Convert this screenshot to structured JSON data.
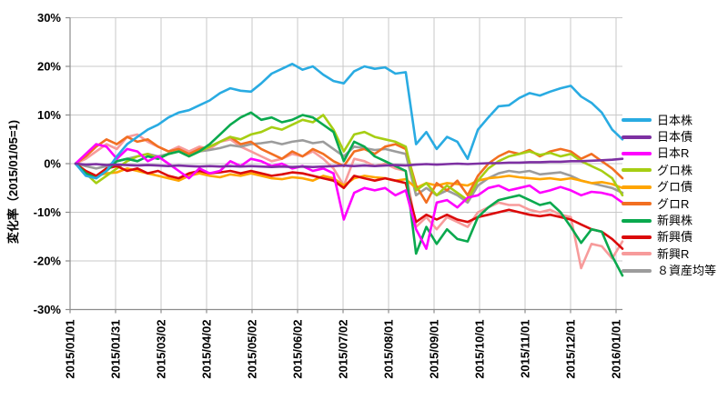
{
  "chart_data": {
    "type": "line",
    "title": "",
    "ylabel": "変化率（2015/01/05=1)",
    "ylim": [
      -30,
      30
    ],
    "y_tick_step": 10,
    "y_tick_labels": [
      "30%",
      "20%",
      "10%",
      "0%",
      "-10%",
      "-20%",
      "-30%"
    ],
    "x_tick_labels": [
      "2015/01/01",
      "2015/01/31",
      "2015/03/02",
      "2015/04/02",
      "2015/05/02",
      "2015/06/02",
      "2015/07/02",
      "2015/08/01",
      "2015/09/01",
      "2015/10/01",
      "2015/11/01",
      "2015/12/01",
      "2016/01/01"
    ],
    "grid": true,
    "legend_position": "right",
    "unit": "percent",
    "x_dates": [
      "2015/01/05",
      "2015/01/12",
      "2015/01/19",
      "2015/01/26",
      "2015/02/02",
      "2015/02/09",
      "2015/02/16",
      "2015/02/23",
      "2015/03/02",
      "2015/03/09",
      "2015/03/16",
      "2015/03/23",
      "2015/03/30",
      "2015/04/06",
      "2015/04/13",
      "2015/04/20",
      "2015/04/27",
      "2015/05/04",
      "2015/05/11",
      "2015/05/18",
      "2015/05/25",
      "2015/06/01",
      "2015/06/08",
      "2015/06/15",
      "2015/06/22",
      "2015/06/29",
      "2015/07/06",
      "2015/07/13",
      "2015/07/20",
      "2015/07/27",
      "2015/08/03",
      "2015/08/10",
      "2015/08/17",
      "2015/08/24",
      "2015/08/31",
      "2015/09/07",
      "2015/09/14",
      "2015/09/21",
      "2015/09/28",
      "2015/10/05",
      "2015/10/12",
      "2015/10/19",
      "2015/10/26",
      "2015/11/02",
      "2015/11/09",
      "2015/11/16",
      "2015/11/23",
      "2015/11/30",
      "2015/12/07",
      "2015/12/14",
      "2015/12/21",
      "2015/12/28",
      "2016/01/04",
      "2016/01/08"
    ],
    "series": [
      {
        "id": "japan-stock",
        "name": "日本株",
        "color": "#29ABE2",
        "values": [
          0,
          -2.5,
          -3,
          -1.5,
          1.5,
          4,
          5.5,
          7,
          8,
          9.5,
          10.5,
          11,
          12,
          13,
          14.5,
          15.5,
          15,
          14.8,
          16.5,
          18.5,
          19.5,
          20.5,
          19.3,
          20,
          18.3,
          17,
          16.5,
          19,
          20,
          19.5,
          19.8,
          18.5,
          18.8,
          4,
          6.5,
          3,
          5.5,
          4.5,
          1,
          7,
          9.5,
          11.8,
          12,
          13.5,
          14.5,
          14,
          14.8,
          15.5,
          16,
          13.8,
          12.5,
          10.5,
          7,
          5
        ]
      },
      {
        "id": "japan-bond",
        "name": "日本債",
        "color": "#7D30A2",
        "values": [
          0,
          -0.2,
          -0.1,
          -0.3,
          -0.2,
          -0.3,
          -0.4,
          -0.3,
          -0.4,
          -0.5,
          -0.4,
          -0.5,
          -0.6,
          -0.5,
          -0.6,
          -0.5,
          -0.6,
          -0.5,
          -0.6,
          -0.7,
          -0.6,
          -0.7,
          -0.6,
          -0.7,
          -0.6,
          -0.5,
          -0.4,
          -0.5,
          -0.4,
          -0.5,
          -0.4,
          -0.3,
          -0.4,
          -0.2,
          -0.1,
          -0.2,
          -0.1,
          0,
          -0.1,
          0,
          0.1,
          0.1,
          0.2,
          0.2,
          0.3,
          0.3,
          0.4,
          0.4,
          0.5,
          0.5,
          0.6,
          0.7,
          0.8,
          1
        ]
      },
      {
        "id": "japan-reit",
        "name": "日本R",
        "color": "#FF00FF",
        "values": [
          0,
          2,
          4,
          3.5,
          1,
          3,
          2.5,
          0.5,
          1.5,
          0,
          -1.5,
          -3,
          -1,
          -2,
          -1.5,
          0.5,
          -0.5,
          1,
          0.5,
          -0.5,
          0,
          -1,
          -0.5,
          -1.5,
          -1,
          -2,
          -11.5,
          -6,
          -5,
          -5.5,
          -5,
          -6.5,
          -5.5,
          -13.5,
          -17.5,
          -8,
          -7.5,
          -9,
          -7,
          -6.5,
          -5,
          -4.5,
          -5.5,
          -5,
          -4.5,
          -6,
          -5.5,
          -4.8,
          -5.5,
          -6.5,
          -5.8,
          -6,
          -6.5,
          -8
        ]
      },
      {
        "id": "global-stock",
        "name": "グロ株",
        "color": "#A6CE13",
        "values": [
          0,
          -2,
          -4,
          -2.5,
          -1,
          0.5,
          1.5,
          2,
          1,
          2,
          2.5,
          1.5,
          2.5,
          3.5,
          4.5,
          5.5,
          5,
          6,
          6.5,
          7.5,
          7,
          8,
          9,
          8.5,
          10,
          7,
          2.5,
          6,
          6.5,
          5.5,
          5,
          4.5,
          3.5,
          -5.5,
          -4,
          -6.5,
          -4.5,
          -6,
          -7.5,
          -3.5,
          -1,
          0.5,
          1.5,
          2,
          2.5,
          1.8,
          2.2,
          1.5,
          2,
          0.5,
          -0.5,
          -1.5,
          -3,
          -6.5
        ]
      },
      {
        "id": "global-bond",
        "name": "グロ債",
        "color": "#FFA500",
        "values": [
          0,
          -1.5,
          -2.5,
          -2,
          -1.8,
          -1,
          -1.5,
          -2,
          -2.5,
          -3,
          -3.5,
          -2.5,
          -2,
          -2.5,
          -2.8,
          -2.2,
          -2.5,
          -2,
          -2.5,
          -3,
          -3.2,
          -2.8,
          -3,
          -3.5,
          -2.5,
          -3,
          -4.5,
          -3,
          -2.5,
          -2.8,
          -3,
          -3.5,
          -3.2,
          -5,
          -4,
          -4.5,
          -4,
          -4.2,
          -4.5,
          -3.5,
          -3,
          -2.8,
          -2.5,
          -2.8,
          -3,
          -3.2,
          -3,
          -3.3,
          -3,
          -3.5,
          -4,
          -3.8,
          -4.2,
          -5
        ]
      },
      {
        "id": "global-reit",
        "name": "グロR",
        "color": "#F26F21",
        "values": [
          0,
          1.5,
          3.5,
          5,
          4,
          5.5,
          4.5,
          5,
          3.5,
          2.5,
          3,
          2,
          3,
          3.5,
          4.5,
          5.5,
          4,
          4.5,
          3,
          2,
          1,
          2.5,
          1.5,
          3,
          2,
          0.5,
          -0.5,
          2.5,
          3,
          2,
          3.5,
          4,
          3,
          -4.5,
          -8,
          -4,
          -5.5,
          -3.5,
          -6.5,
          -2.5,
          0,
          1.5,
          2.5,
          2,
          2.8,
          1.5,
          2.5,
          3,
          2.5,
          1,
          2,
          0.5,
          -1,
          -3
        ]
      },
      {
        "id": "emerging-stock",
        "name": "新興株",
        "color": "#0AA94E",
        "values": [
          0,
          -2,
          -3,
          -1.5,
          0.5,
          1,
          0.5,
          1.5,
          1,
          2,
          2.5,
          1.5,
          2.5,
          4,
          6,
          8,
          9.5,
          10.5,
          9,
          9.5,
          8.5,
          9,
          10,
          9.5,
          8,
          6.5,
          0.5,
          4.5,
          3.5,
          1.5,
          0.5,
          -0.5,
          -1.5,
          -18.5,
          -13,
          -16.5,
          -13.5,
          -15.5,
          -16,
          -11,
          -9,
          -7.5,
          -7,
          -6.5,
          -7.5,
          -8.5,
          -8,
          -10,
          -13,
          -16.3,
          -13.5,
          -14,
          -19,
          -23
        ]
      },
      {
        "id": "emerging-bond",
        "name": "新興債",
        "color": "#DB0A0A",
        "values": [
          0,
          -1.5,
          -2.5,
          -1,
          -0.5,
          -1.5,
          -1,
          -2,
          -1.5,
          -2.5,
          -3,
          -2,
          -1.5,
          -2,
          -1.8,
          -1.5,
          -2,
          -1.5,
          -2,
          -2.5,
          -2.2,
          -1.8,
          -2,
          -2.5,
          -3,
          -3.5,
          -5,
          -2.5,
          -3,
          -3.5,
          -3,
          -3.5,
          -4,
          -12,
          -10.5,
          -11.5,
          -10.5,
          -11.5,
          -12,
          -11,
          -10.5,
          -10,
          -9.5,
          -10,
          -10.5,
          -10.8,
          -10.5,
          -11,
          -11.5,
          -12.5,
          -13.5,
          -14,
          -15.5,
          -17.5
        ]
      },
      {
        "id": "emerging-reit",
        "name": "新興R",
        "color": "#F79B9B",
        "values": [
          0,
          1,
          2.5,
          4,
          3,
          5.5,
          6,
          4.5,
          3.5,
          2.5,
          3.5,
          2.5,
          3.5,
          3,
          4.5,
          5,
          3.5,
          2.5,
          1.5,
          0.5,
          1,
          2,
          1.5,
          2.5,
          1,
          -1,
          -4.5,
          1,
          0.5,
          -0.5,
          0,
          -1,
          -1.5,
          -13,
          -11,
          -13.5,
          -11,
          -12,
          -13,
          -10,
          -9,
          -8,
          -8.5,
          -8.5,
          -9.5,
          -10,
          -9.5,
          -10.5,
          -11,
          -21.5,
          -16.5,
          -17,
          -19.5,
          -16
        ]
      },
      {
        "id": "eight-asset-equal",
        "name": "８資産均等",
        "color": "#9C9C9C",
        "values": [
          0,
          -0.5,
          -1,
          -0.5,
          0.5,
          1,
          1.5,
          2,
          1.5,
          2,
          2.5,
          2,
          2.5,
          2.8,
          3.2,
          3.8,
          3.5,
          4,
          4.2,
          4.5,
          4,
          4.5,
          4.8,
          4.2,
          4.5,
          3,
          1.5,
          3.5,
          3.2,
          2.8,
          3,
          2.5,
          2,
          -6.5,
          -5,
          -6.5,
          -5.5,
          -6.5,
          -8,
          -4.5,
          -3,
          -2,
          -1.5,
          -1.8,
          -1.5,
          -2.2,
          -2,
          -1.8,
          -2.5,
          -3.5,
          -4,
          -4.5,
          -5,
          -6
        ]
      }
    ]
  },
  "style": {
    "grid_color": "#C8C8C8",
    "axis_color": "#8C8C8C",
    "text_color": "#000000",
    "background": "#FFFFFF"
  }
}
